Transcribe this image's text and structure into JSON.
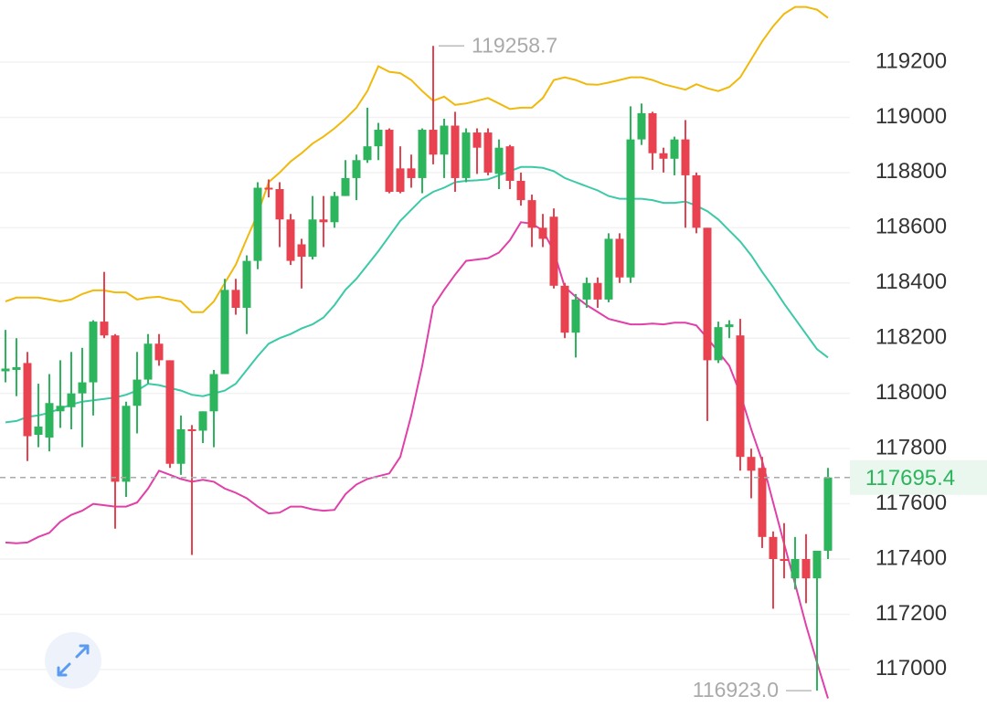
{
  "chart_data": {
    "type": "candlestick",
    "up_color": "#2db55d",
    "down_color": "#e8414f",
    "open": [
      118080,
      118085,
      118110,
      117850,
      117840,
      117935,
      117950,
      118000,
      118040,
      118260,
      118210,
      117680,
      117955,
      118050,
      118180,
      118120,
      117745,
      117870,
      117865,
      117935,
      118070,
      118375,
      118310,
      118480,
      118745,
      118740,
      118630,
      118540,
      118495,
      118630,
      118620,
      118715,
      118780,
      118845,
      118895,
      118955,
      118815,
      118815,
      118780,
      118955,
      118865,
      118970,
      118780,
      118945,
      118945,
      118795,
      118895,
      118770,
      118700,
      118600,
      118640,
      118390,
      118220,
      118340,
      118400,
      118340,
      118560,
      118420,
      118920,
      119015,
      118870,
      118850,
      118920,
      118790,
      118600,
      118120,
      118240,
      118210,
      117770,
      117730,
      117480,
      117400,
      117330,
      117400,
      117330,
      117430
    ],
    "high": [
      118230,
      118200,
      118150,
      118035,
      118070,
      118120,
      118150,
      118165,
      118265,
      118440,
      118215,
      117970,
      118150,
      118215,
      118215,
      118120,
      117920,
      117885,
      117935,
      118085,
      118415,
      118415,
      118500,
      118765,
      118775,
      118765,
      118650,
      118560,
      118715,
      118715,
      118730,
      118845,
      118865,
      119035,
      118980,
      118960,
      118895,
      118865,
      118960,
      119258.7,
      118995,
      119020,
      118960,
      118960,
      118960,
      118920,
      118900,
      118800,
      118720,
      118650,
      118670,
      118400,
      118360,
      118420,
      118420,
      118580,
      118580,
      119040,
      119050,
      119020,
      118890,
      118930,
      118990,
      118800,
      118600,
      118260,
      118265,
      118270,
      117800,
      117770,
      117500,
      117530,
      117480,
      117490,
      117430,
      117730
    ],
    "low": [
      118040,
      117990,
      117755,
      117805,
      117790,
      117875,
      117870,
      117805,
      117920,
      118200,
      117510,
      117625,
      117855,
      118035,
      118100,
      117730,
      117705,
      117415,
      117820,
      117805,
      118070,
      118285,
      118215,
      118450,
      118710,
      118530,
      118465,
      118380,
      118485,
      118530,
      118600,
      118715,
      118700,
      118835,
      118845,
      118725,
      118725,
      118745,
      118725,
      118830,
      118780,
      118730,
      118765,
      118795,
      118790,
      118740,
      118740,
      118680,
      118530,
      118530,
      118380,
      118200,
      118130,
      118310,
      118310,
      118330,
      118400,
      118400,
      118900,
      118810,
      118800,
      118790,
      118600,
      118580,
      117900,
      118110,
      118200,
      117720,
      117620,
      117440,
      117220,
      117330,
      117290,
      117240,
      116923,
      117400
    ],
    "close": [
      118090,
      118095,
      117845,
      117880,
      117965,
      117955,
      118000,
      118040,
      118260,
      118210,
      117680,
      117955,
      118050,
      118180,
      118120,
      117745,
      117870,
      117865,
      117935,
      118070,
      118375,
      118310,
      118480,
      118745,
      118740,
      118630,
      118480,
      118495,
      118630,
      118620,
      118715,
      118780,
      118845,
      118895,
      118955,
      118730,
      118730,
      118780,
      118955,
      118865,
      118970,
      118780,
      118945,
      118890,
      118800,
      118890,
      118770,
      118700,
      118600,
      118560,
      118390,
      118220,
      118340,
      118400,
      118340,
      118560,
      118420,
      118920,
      119015,
      118870,
      118850,
      118920,
      118790,
      118600,
      118120,
      118240,
      118250,
      117770,
      117720,
      117480,
      117400,
      117395,
      117400,
      117330,
      117430,
      117695.4
    ],
    "lines": [
      {
        "color": "#f0b90b",
        "values": [
          118333,
          118347,
          118347,
          118347,
          118340,
          118333,
          118340,
          118360,
          118373,
          118373,
          118366,
          118366,
          118340,
          118347,
          118350,
          118340,
          118333,
          118294,
          118294,
          118333,
          118400,
          118466,
          118560,
          118650,
          118765,
          118800,
          118840,
          118870,
          118905,
          118930,
          118960,
          118995,
          119035,
          119095,
          119185,
          119165,
          119160,
          119135,
          119095,
          119060,
          119075,
          119045,
          119050,
          119060,
          119070,
          119050,
          119030,
          119035,
          119035,
          119070,
          119135,
          119145,
          119135,
          119120,
          119118,
          119126,
          119135,
          119145,
          119145,
          119135,
          119120,
          119110,
          119100,
          119120,
          119105,
          119095,
          119110,
          119145,
          119210,
          119275,
          119330,
          119375,
          119400,
          119400,
          119390,
          119360
        ]
      },
      {
        "color": "#3cc9a7",
        "values": [
          117895,
          117900,
          117915,
          117920,
          117930,
          117945,
          117960,
          117970,
          117975,
          117980,
          117985,
          117995,
          118010,
          118035,
          118030,
          118020,
          118010,
          117995,
          117990,
          118000,
          118010,
          118035,
          118085,
          118135,
          118180,
          118200,
          118215,
          118235,
          118250,
          118275,
          118320,
          118375,
          118415,
          118465,
          118515,
          118570,
          118625,
          118665,
          118705,
          118730,
          118745,
          118765,
          118770,
          118772,
          118775,
          118790,
          118805,
          118820,
          118820,
          118817,
          118805,
          118780,
          118765,
          118750,
          118735,
          118715,
          118705,
          118705,
          118705,
          118700,
          118690,
          118690,
          118695,
          118680,
          118660,
          118630,
          118590,
          118550,
          118500,
          118440,
          118385,
          118325,
          118270,
          118215,
          118160,
          118130
        ]
      },
      {
        "color": "#e040a8",
        "values": [
          117460,
          117457,
          117460,
          117480,
          117495,
          117535,
          117560,
          117575,
          117600,
          117595,
          117590,
          117590,
          117605,
          117655,
          117720,
          117705,
          117690,
          117680,
          117687,
          117680,
          117655,
          117640,
          117620,
          117590,
          117565,
          117568,
          117590,
          117590,
          117580,
          117575,
          117578,
          117635,
          117670,
          117690,
          117700,
          117710,
          117770,
          117920,
          118100,
          118315,
          118375,
          118430,
          118480,
          118485,
          118490,
          118510,
          118555,
          118620,
          118615,
          118590,
          118515,
          118385,
          118350,
          118320,
          118295,
          118270,
          118260,
          118250,
          118250,
          118253,
          118250,
          118256,
          118256,
          118246,
          118200,
          118150,
          118100,
          118000,
          117870,
          117755,
          117605,
          117455,
          117310,
          117160,
          117025,
          116895
        ]
      }
    ],
    "ylim": [
      116864,
      119425
    ],
    "yticks": [
      117000,
      117200,
      117400,
      117600,
      117800,
      118000,
      118200,
      118400,
      118600,
      118800,
      119000,
      119200
    ],
    "grid": true,
    "high_label": 119258.7,
    "low_label": {
      "value": 116923,
      "label": "116923.0"
    },
    "last_price": 117695.4
  }
}
